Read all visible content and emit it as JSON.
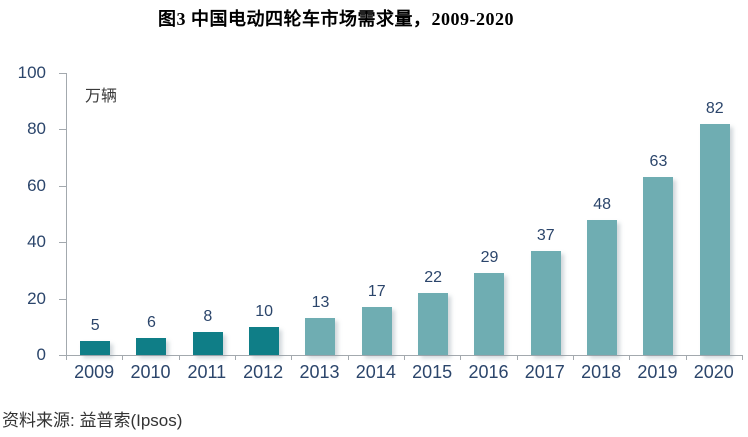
{
  "title": "图3 中国电动四轮车市场需求量，2009-2020",
  "unit_label": "万辆",
  "source": "资料来源: 益普索(Ipsos)",
  "colors": {
    "bar_dark": "#0f7e87",
    "bar_light": "#6fadb2",
    "axis_text": "#2b456b",
    "axis_line": "#a3a9ae",
    "title_text": "#000000",
    "source_text": "#333333"
  },
  "chart_data": {
    "type": "bar",
    "title": "图3 中国电动四轮车市场需求量，2009-2020",
    "categories": [
      "2009",
      "2010",
      "2011",
      "2012",
      "2013",
      "2014",
      "2015",
      "2016",
      "2017",
      "2018",
      "2019",
      "2020"
    ],
    "values": [
      5,
      6,
      8,
      10,
      13,
      17,
      22,
      29,
      37,
      48,
      63,
      82
    ],
    "bar_colors": [
      "#0f7e87",
      "#0f7e87",
      "#0f7e87",
      "#0f7e87",
      "#6fadb2",
      "#6fadb2",
      "#6fadb2",
      "#6fadb2",
      "#6fadb2",
      "#6fadb2",
      "#6fadb2",
      "#6fadb2"
    ],
    "data_labels": [
      "5",
      "6",
      "8",
      "10",
      "13",
      "17",
      "22",
      "29",
      "37",
      "48",
      "63",
      "82"
    ],
    "xlabel": "",
    "ylabel": "万辆",
    "ylim": [
      0,
      100
    ],
    "yticks": [
      0,
      20,
      40,
      60,
      80,
      100
    ],
    "grid": false,
    "legend": "none"
  }
}
